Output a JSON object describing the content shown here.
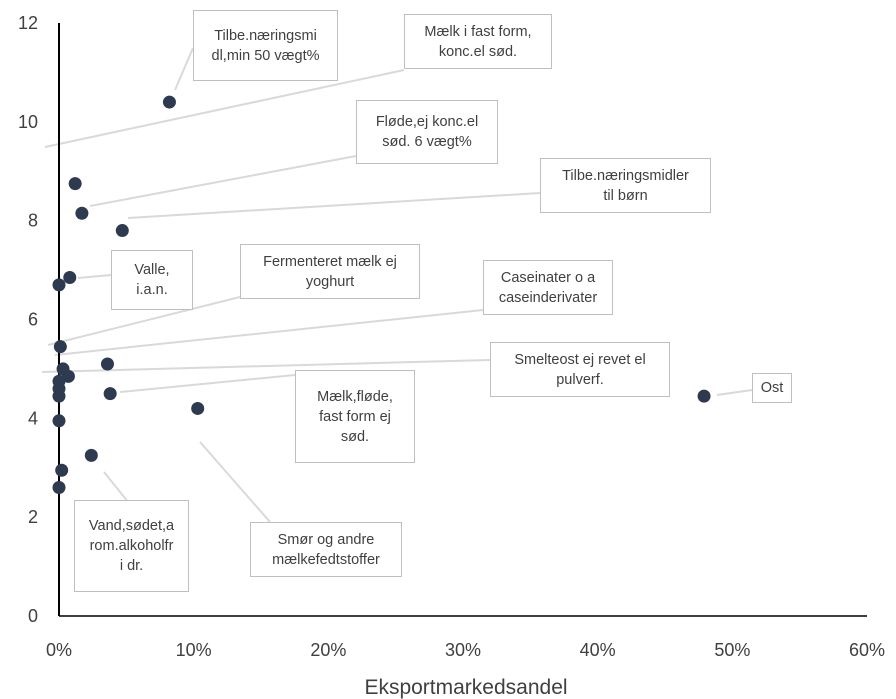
{
  "chart_data": {
    "type": "scatter",
    "title": "",
    "xlabel": "Eksportmarkedsandel",
    "ylabel": "",
    "xlim": [
      0,
      0.6
    ],
    "ylim": [
      0,
      12
    ],
    "x_ticks": [
      "0%",
      "10%",
      "20%",
      "30%",
      "40%",
      "50%",
      "60%"
    ],
    "y_ticks": [
      "0",
      "2",
      "4",
      "6",
      "8",
      "10",
      "12"
    ],
    "grid": false,
    "legend": "none",
    "marker_color": "#2e3a4f",
    "points": [
      {
        "x": 0.082,
        "y": 10.4
      },
      {
        "x": 0.012,
        "y": 8.75
      },
      {
        "x": 0.017,
        "y": 8.15
      },
      {
        "x": 0.047,
        "y": 7.8
      },
      {
        "x": 0.008,
        "y": 6.85
      },
      {
        "x": 0.0,
        "y": 6.7
      },
      {
        "x": 0.001,
        "y": 5.45
      },
      {
        "x": 0.003,
        "y": 5.0
      },
      {
        "x": 0.036,
        "y": 5.1
      },
      {
        "x": 0.007,
        "y": 4.85
      },
      {
        "x": 0.0,
        "y": 4.75
      },
      {
        "x": 0.038,
        "y": 4.5
      },
      {
        "x": 0.0,
        "y": 4.6
      },
      {
        "x": 0.0,
        "y": 4.45
      },
      {
        "x": 0.103,
        "y": 4.2
      },
      {
        "x": 0.0,
        "y": 3.95
      },
      {
        "x": 0.024,
        "y": 3.25
      },
      {
        "x": 0.002,
        "y": 2.95
      },
      {
        "x": 0.0,
        "y": 2.6
      },
      {
        "x": 0.479,
        "y": 4.45
      }
    ],
    "annotations": [
      {
        "lines": [
          "Tilbe.næringsmi",
          "dl,min 50 vægt%"
        ]
      },
      {
        "lines": [
          "Mælk i fast form,",
          "konc.el sød."
        ]
      },
      {
        "lines": [
          "Fløde,ej konc.el",
          "sød. 6 vægt%"
        ]
      },
      {
        "lines": [
          "Tilbe.næringsmidler",
          "til børn"
        ]
      },
      {
        "lines": [
          "Valle,",
          "i.a.n."
        ]
      },
      {
        "lines": [
          "Fermenteret mælk ej",
          "yoghurt"
        ]
      },
      {
        "lines": [
          "Caseinater o a",
          "caseinderivater"
        ]
      },
      {
        "lines": [
          "Smelteost ej revet el",
          "pulverf."
        ]
      },
      {
        "lines": [
          "Ost"
        ]
      },
      {
        "lines": [
          "Mælk,fløde,",
          "fast form ej",
          "sød."
        ]
      },
      {
        "lines": [
          "Smør og andre",
          "mælkefedtstoffer"
        ]
      },
      {
        "lines": [
          "Vand,sødet,a",
          "rom.alkoholfr",
          "i dr."
        ]
      }
    ]
  },
  "colors": {
    "axis": "#000000",
    "leader": "#d9d9d9",
    "text": "#404040",
    "box_border": "#bfbfbf"
  }
}
